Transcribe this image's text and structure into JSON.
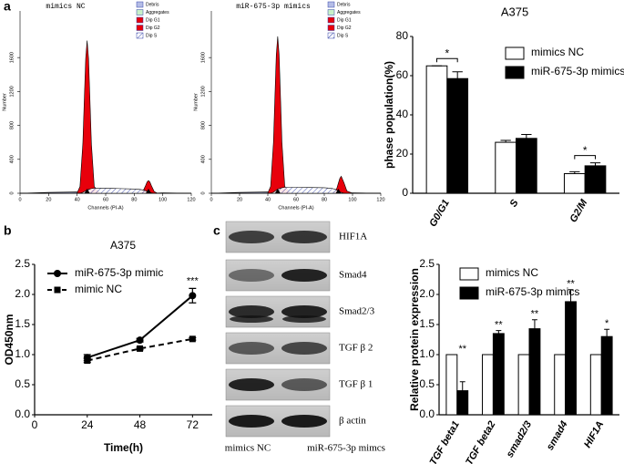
{
  "panel_labels": [
    "a",
    "b",
    "c"
  ],
  "chart_data": [
    {
      "type": "area",
      "title": "mimics NC",
      "x_label": "Channels (PI-A)",
      "y_label": "Number",
      "x": [
        0,
        20,
        40,
        42,
        44,
        45,
        46,
        47,
        48,
        49,
        50,
        52,
        56,
        60,
        70,
        80,
        84,
        86,
        88,
        89,
        90,
        91,
        92,
        94,
        96,
        100,
        120
      ],
      "series": [
        {
          "name": "Debris",
          "color": "#b4bce6",
          "values": [
            0,
            10,
            15,
            12,
            10,
            8,
            6,
            5,
            4,
            3,
            2,
            0,
            0,
            0,
            0,
            0,
            0,
            0,
            0,
            0,
            0,
            0,
            0,
            0,
            0,
            0,
            0
          ]
        },
        {
          "name": "Aggregates",
          "color": "#c8f0c8",
          "values": [
            0,
            0,
            0,
            0,
            0,
            0,
            0,
            0,
            0,
            0,
            0,
            0,
            0,
            0,
            0,
            0,
            0,
            0,
            0,
            0,
            0,
            0,
            0,
            0,
            2,
            5,
            0
          ]
        },
        {
          "name": "Dip G1",
          "color": "#e8000b",
          "values": [
            0,
            0,
            4,
            79,
            585,
            1092,
            1588,
            1800,
            1588,
            1092,
            585,
            79,
            0,
            0,
            0,
            0,
            0,
            0,
            0,
            0,
            0,
            0,
            0,
            0,
            0,
            0,
            0
          ]
        },
        {
          "name": "Dip G2",
          "color": "#e8000b",
          "values": [
            0,
            0,
            0,
            0,
            0,
            0,
            0,
            0,
            0,
            0,
            0,
            0,
            0,
            0,
            0,
            0,
            2,
            20,
            91,
            132,
            150,
            132,
            91,
            20,
            2,
            0,
            0
          ]
        },
        {
          "name": "Dip S",
          "color": "#3344aa",
          "hatch": true,
          "values": [
            0,
            0,
            0,
            0,
            10,
            20,
            30,
            40,
            45,
            50,
            55,
            60,
            60,
            60,
            55,
            50,
            45,
            40,
            30,
            20,
            15,
            10,
            5,
            0,
            0,
            0,
            0
          ]
        }
      ],
      "xlim": [
        0,
        120
      ],
      "xticks": [
        0,
        20,
        40,
        60,
        80,
        100,
        120
      ],
      "ylim": [
        0,
        2150
      ],
      "yticks": [
        0,
        400,
        800,
        1200,
        1600
      ]
    },
    {
      "type": "area",
      "title": "miR-675-3p mimics",
      "x_label": "Channels (PI-A)",
      "y_label": "Number",
      "x": [
        0,
        20,
        40,
        42,
        44,
        45,
        46,
        47,
        48,
        49,
        50,
        52,
        56,
        60,
        70,
        80,
        84,
        86,
        88,
        89,
        90,
        91,
        92,
        94,
        96,
        100,
        120
      ],
      "series": [
        {
          "name": "Debris",
          "color": "#b4bce6",
          "values": [
            0,
            10,
            15,
            12,
            10,
            8,
            6,
            5,
            4,
            3,
            2,
            0,
            0,
            0,
            0,
            0,
            0,
            0,
            0,
            0,
            0,
            0,
            0,
            0,
            0,
            0,
            0
          ]
        },
        {
          "name": "Aggregates",
          "color": "#c8f0c8",
          "values": [
            0,
            0,
            0,
            0,
            0,
            0,
            0,
            0,
            0,
            0,
            0,
            0,
            0,
            0,
            0,
            0,
            0,
            0,
            0,
            0,
            0,
            0,
            0,
            0,
            2,
            5,
            0
          ]
        },
        {
          "name": "Dip G1",
          "color": "#e8000b",
          "values": [
            0,
            0,
            4,
            81,
            601,
            1122,
            1632,
            1850,
            1632,
            1122,
            601,
            81,
            0,
            0,
            0,
            0,
            0,
            0,
            0,
            0,
            0,
            0,
            0,
            0,
            0,
            0,
            0
          ]
        },
        {
          "name": "Dip G2",
          "color": "#e8000b",
          "values": [
            0,
            0,
            0,
            0,
            0,
            0,
            0,
            0,
            0,
            0,
            0,
            0,
            0,
            0,
            0,
            0,
            0,
            2,
            27,
            65,
            121,
            176,
            200,
            121,
            27,
            0,
            0
          ]
        },
        {
          "name": "Dip S",
          "color": "#3344aa",
          "hatch": true,
          "values": [
            0,
            0,
            0,
            0,
            12,
            24,
            36,
            48,
            55,
            60,
            65,
            70,
            70,
            70,
            68,
            65,
            60,
            55,
            45,
            35,
            25,
            15,
            10,
            0,
            0,
            0,
            0
          ]
        }
      ],
      "xlim": [
        0,
        120
      ],
      "xticks": [
        0,
        20,
        40,
        60,
        80,
        100,
        120
      ],
      "ylim": [
        0,
        2150
      ],
      "yticks": [
        0,
        400,
        800,
        1200,
        1600
      ]
    },
    {
      "type": "bar",
      "title": "A375",
      "y_label": "phase population(%)",
      "categories": [
        "G0/G1",
        "S",
        "G2/M"
      ],
      "series": [
        {
          "name": "mimics NC",
          "color": "#ffffff",
          "values": [
            65,
            26,
            10
          ],
          "errors": [
            0,
            1,
            1
          ]
        },
        {
          "name": "miR-675-3p mimics",
          "color": "#000000",
          "values": [
            58.5,
            28,
            14
          ],
          "errors": [
            3.5,
            2,
            1.5
          ]
        }
      ],
      "annotations": [
        "*",
        null,
        "*"
      ],
      "brackets": true,
      "ylim": [
        0,
        80
      ],
      "yticks": [
        0,
        20,
        40,
        60,
        80
      ]
    },
    {
      "type": "line",
      "title": "A375",
      "x_label": "Time(h)",
      "y_label": "OD450nm",
      "x": [
        24,
        48,
        72
      ],
      "series": [
        {
          "name": "miR-675-3p mimic",
          "color": "#000000",
          "marker": "circle",
          "dashed": false,
          "values": [
            0.95,
            1.24,
            1.98
          ],
          "errors": [
            0.05,
            0.03,
            0.12
          ]
        },
        {
          "name": "mimic NC",
          "color": "#000000",
          "marker": "square",
          "dashed": true,
          "values": [
            0.9,
            1.1,
            1.26
          ],
          "errors": [
            0.03,
            0.02,
            0.02
          ]
        }
      ],
      "annotations": [
        null,
        null,
        "***"
      ],
      "xlim": [
        0,
        81
      ],
      "xticks": [
        0,
        24,
        48,
        72
      ],
      "ylim": [
        0,
        2.5
      ],
      "yticks": [
        {
          "value": 0,
          "label": "0.0"
        },
        0.5,
        {
          "value": 1,
          "label": "1.0"
        },
        1.5,
        {
          "value": 2,
          "label": "2.0"
        },
        2.5
      ]
    },
    {
      "type": "bar",
      "y_label": "Relative protein expression",
      "categories": [
        "TGF beta1",
        "TGF beta2",
        "smad2/3",
        "smad4",
        "HIF1A"
      ],
      "series": [
        {
          "name": "mimics NC",
          "color": "#ffffff",
          "values": [
            1,
            1,
            1,
            1,
            1
          ],
          "errors": [
            0,
            0,
            0,
            0,
            0
          ]
        },
        {
          "name": "miR-675-3p mimics",
          "color": "#000000",
          "values": [
            0.4,
            1.35,
            1.43,
            1.88,
            1.3
          ],
          "errors": [
            0.15,
            0.05,
            0.15,
            0.2,
            0.12
          ]
        }
      ],
      "annotations": [
        "**",
        "**",
        "**",
        "**",
        "*"
      ],
      "brackets": false,
      "ylim": [
        0,
        2.5
      ],
      "yticks": [
        {
          "value": 0,
          "label": "0.0"
        },
        0.5,
        {
          "value": 1,
          "label": "1.0"
        },
        1.5,
        {
          "value": 2,
          "label": "2.0"
        },
        2.5
      ]
    }
  ],
  "western_blot": {
    "bands": [
      "HIF1A",
      "Smad4",
      "Smad2/3",
      "TGF β 2",
      "TGF β 1",
      "β actin"
    ],
    "lanes": [
      "mimics NC",
      "miR-675-3p mimcs"
    ]
  }
}
